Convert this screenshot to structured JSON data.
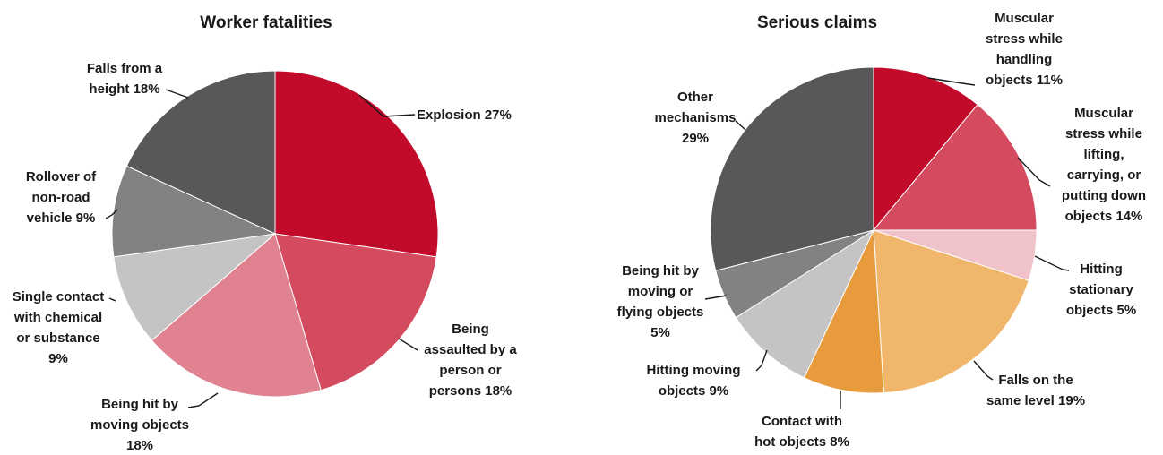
{
  "chart_data": [
    {
      "type": "pie",
      "title": "Worker fatalities",
      "slices": [
        {
          "label": [
            "Explosion 27%"
          ],
          "value": 27,
          "color": "#C20A2A"
        },
        {
          "label": [
            "Being",
            "assaulted by a",
            "person or",
            "persons 18%"
          ],
          "value": 18,
          "color": "#D44A5E"
        },
        {
          "label": [
            "Being hit by",
            "moving objects",
            "18%"
          ],
          "value": 18,
          "color": "#E08290"
        },
        {
          "label": [
            "Single contact",
            "with chemical",
            "or substance",
            "9%"
          ],
          "value": 9,
          "color": "#C4C4C4"
        },
        {
          "label": [
            "Rollover of",
            "non-road",
            "vehicle 9%"
          ],
          "value": 9,
          "color": "#828282"
        },
        {
          "label": [
            "Falls from a",
            "height 18%"
          ],
          "value": 18,
          "color": "#585858"
        }
      ]
    },
    {
      "type": "pie",
      "title": "Serious claims",
      "slices": [
        {
          "label": [
            "Muscular",
            "stress while",
            "handling",
            "objects 11%"
          ],
          "value": 11,
          "color": "#C20A2A"
        },
        {
          "label": [
            "Muscular",
            "stress while",
            "lifting,",
            "carrying, or",
            "putting down",
            "objects 14%"
          ],
          "value": 14,
          "color": "#D44A5E"
        },
        {
          "label": [
            "Hitting",
            "stationary",
            "objects 5%"
          ],
          "value": 5,
          "color": "#F0C3CA"
        },
        {
          "label": [
            "Falls on the",
            "same level 19%"
          ],
          "value": 19,
          "color": "#F0B66C"
        },
        {
          "label": [
            "Contact with",
            "hot objects 8%"
          ],
          "value": 8,
          "color": "#E89B3C"
        },
        {
          "label": [
            "Hitting moving",
            "objects 9%"
          ],
          "value": 9,
          "color": "#C4C4C4"
        },
        {
          "label": [
            "Being hit by",
            "moving or",
            "flying objects",
            "5%"
          ],
          "value": 5,
          "color": "#828282"
        },
        {
          "label": [
            "Other",
            "mechanisms",
            "29%"
          ],
          "value": 29,
          "color": "#585858"
        }
      ]
    }
  ]
}
